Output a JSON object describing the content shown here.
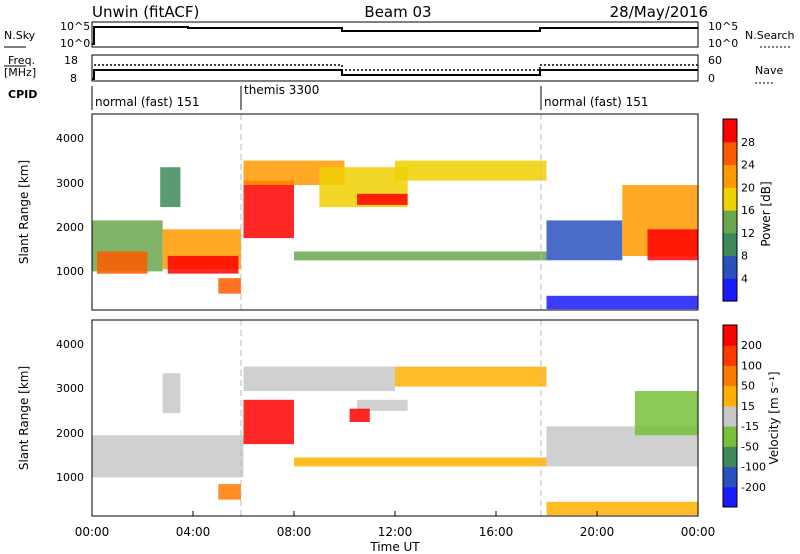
{
  "header": {
    "station": "Unwin (fitACF)",
    "beam": "Beam 03",
    "date": "28/May/2016"
  },
  "panels": {
    "noise": {
      "left_label": "N.Sky",
      "left_ticks": [
        "10^5",
        "10^0"
      ],
      "right_label": "N.Search",
      "right_ticks": [
        "10^5",
        "10^0"
      ]
    },
    "freq": {
      "left_label_1": "Freq.",
      "left_label_2": "[MHz]",
      "left_ticks": [
        "18",
        "8"
      ],
      "right_label": "Nave",
      "right_ticks": [
        "60",
        "0"
      ]
    },
    "cpid": {
      "label": "CPID",
      "segments": [
        {
          "label": "normal (fast) 151",
          "start_h": 0,
          "end_h": 6
        },
        {
          "label": "themis 3300",
          "start_h": 6,
          "end_h": 18
        },
        {
          "label": "normal (fast) 151",
          "start_h": 18,
          "end_h": 24
        }
      ]
    }
  },
  "chart_data": [
    {
      "type": "heatmap",
      "title": "",
      "xlabel": "",
      "ylabel": "Slant Range [km]",
      "xlim": [
        0,
        24
      ],
      "ylim": [
        180,
        4600
      ],
      "yticks": [
        "1000",
        "2000",
        "3000",
        "4000"
      ],
      "colorbar": {
        "label": "Power [dB]",
        "ticks": [
          "4",
          "8",
          "12",
          "16",
          "20",
          "24",
          "28"
        ],
        "colors": [
          "#1a1aff",
          "#2a52be",
          "#3c8a5a",
          "#6aa84f",
          "#f0d000",
          "#ff9a00",
          "#ff5a00",
          "#ff0000"
        ]
      },
      "regions": [
        {
          "t0": 0,
          "t1": 2.8,
          "r0": 1050,
          "r1": 2200,
          "level": 3
        },
        {
          "t0": 0.2,
          "t1": 2.2,
          "r0": 1000,
          "r1": 1500,
          "level": 6
        },
        {
          "t0": 2.8,
          "t1": 5.9,
          "r0": 1100,
          "r1": 2000,
          "level": 5
        },
        {
          "t0": 3.0,
          "t1": 5.8,
          "r0": 1000,
          "r1": 1400,
          "level": 7
        },
        {
          "t0": 2.7,
          "t1": 3.5,
          "r0": 2500,
          "r1": 3400,
          "level": 2
        },
        {
          "t0": 5.0,
          "t1": 5.9,
          "r0": 550,
          "r1": 900,
          "level": 6
        },
        {
          "t0": 6.0,
          "t1": 8.0,
          "r0": 1800,
          "r1": 3100,
          "level": 7
        },
        {
          "t0": 6.0,
          "t1": 10.0,
          "r0": 3000,
          "r1": 3550,
          "level": 5
        },
        {
          "t0": 9.0,
          "t1": 12.5,
          "r0": 2500,
          "r1": 3400,
          "level": 4
        },
        {
          "t0": 10.5,
          "t1": 12.5,
          "r0": 2550,
          "r1": 2800,
          "level": 7
        },
        {
          "t0": 12.0,
          "t1": 18.0,
          "r0": 3100,
          "r1": 3550,
          "level": 4
        },
        {
          "t0": 8.0,
          "t1": 18.0,
          "r0": 1300,
          "r1": 1500,
          "level": 3
        },
        {
          "t0": 18.0,
          "t1": 21.0,
          "r0": 1300,
          "r1": 2200,
          "level": 1
        },
        {
          "t0": 21.0,
          "t1": 24.0,
          "r0": 1400,
          "r1": 3000,
          "level": 5
        },
        {
          "t0": 22.0,
          "t1": 24.0,
          "r0": 1300,
          "r1": 2000,
          "level": 7
        },
        {
          "t0": 18.0,
          "t1": 24.0,
          "r0": 200,
          "r1": 500,
          "level": 0
        }
      ]
    },
    {
      "type": "heatmap",
      "title": "",
      "xlabel": "Time UT",
      "ylabel": "Slant Range [km]",
      "xlim": [
        0,
        24
      ],
      "ylim": [
        180,
        4600
      ],
      "xticks": [
        "00:00",
        "04:00",
        "08:00",
        "12:00",
        "16:00",
        "20:00",
        "00:00"
      ],
      "yticks": [
        "1000",
        "2000",
        "3000",
        "4000"
      ],
      "colorbar": {
        "label": "Velocity [m s⁻¹]",
        "ticks": [
          "200",
          "100",
          "50",
          "15",
          "-15",
          "-50",
          "-100",
          "-200"
        ],
        "colors": [
          "#1a1aff",
          "#2a52be",
          "#3c8a5a",
          "#77c13a",
          "#c8c8c8",
          "#ffb000",
          "#ff7a00",
          "#ff3a00",
          "#ff0000"
        ]
      },
      "regions": [
        {
          "t0": 0,
          "t1": 6.0,
          "r0": 1050,
          "r1": 2000,
          "level": 4
        },
        {
          "t0": 2.8,
          "t1": 3.5,
          "r0": 2500,
          "r1": 3400,
          "level": 4
        },
        {
          "t0": 5.0,
          "t1": 5.9,
          "r0": 550,
          "r1": 900,
          "level": 6
        },
        {
          "t0": 6.0,
          "t1": 8.0,
          "r0": 1800,
          "r1": 2800,
          "level": 8
        },
        {
          "t0": 6.0,
          "t1": 12.0,
          "r0": 3000,
          "r1": 3550,
          "level": 4
        },
        {
          "t0": 10.5,
          "t1": 12.5,
          "r0": 2550,
          "r1": 2800,
          "level": 4
        },
        {
          "t0": 10.2,
          "t1": 11.0,
          "r0": 2300,
          "r1": 2600,
          "level": 8
        },
        {
          "t0": 12.0,
          "t1": 18.0,
          "r0": 3100,
          "r1": 3550,
          "level": 5
        },
        {
          "t0": 8.0,
          "t1": 18.0,
          "r0": 1300,
          "r1": 1500,
          "level": 5
        },
        {
          "t0": 18.0,
          "t1": 24.0,
          "r0": 1300,
          "r1": 2200,
          "level": 4
        },
        {
          "t0": 21.5,
          "t1": 24.0,
          "r0": 2000,
          "r1": 3000,
          "level": 3
        },
        {
          "t0": 18.0,
          "t1": 24.0,
          "r0": 200,
          "r1": 500,
          "level": 5
        }
      ]
    }
  ]
}
